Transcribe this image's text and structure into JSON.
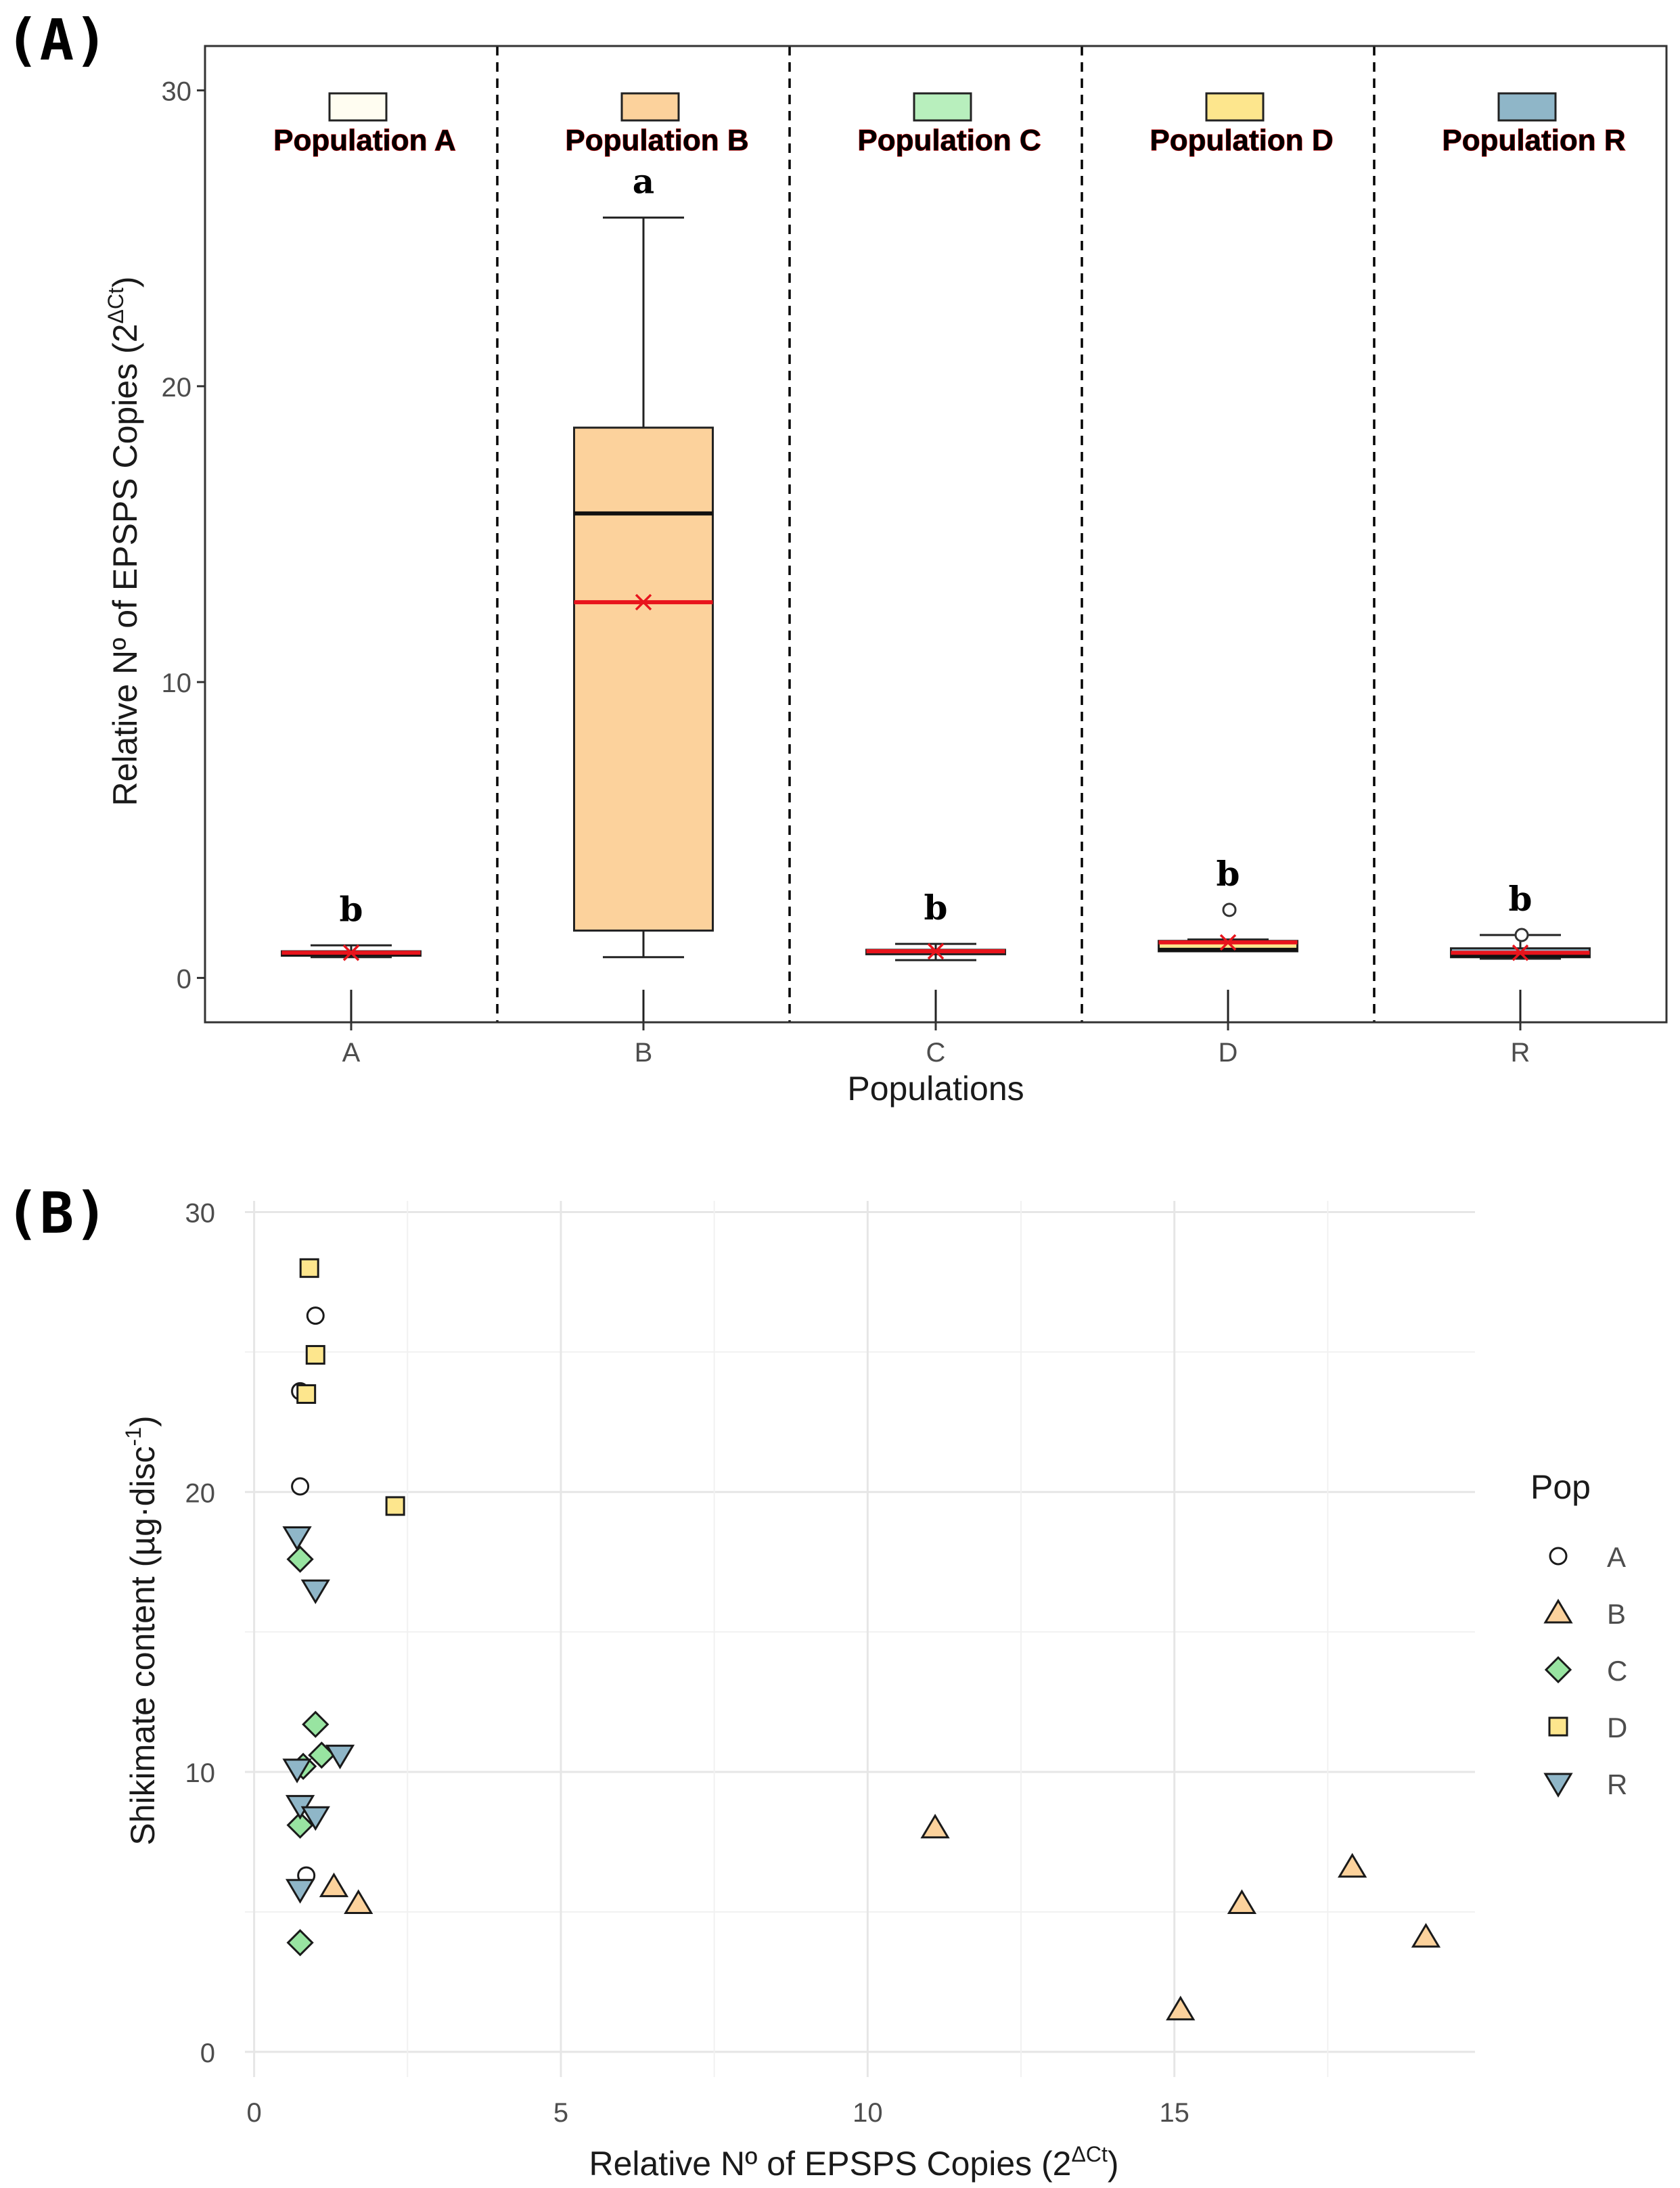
{
  "chart_data": [
    {
      "panel_label": "(A)",
      "type": "box",
      "xlabel": "Populations",
      "ylabel_main": "Relative Nº of EPSPS Copies (2",
      "ylabel_sup": "ΔCt",
      "ylabel_end": ")",
      "ylim": [
        -1.5,
        31.5
      ],
      "yticks": [
        "0",
        "10",
        "20",
        "30"
      ],
      "categories": [
        "A",
        "B",
        "C",
        "D",
        "R"
      ],
      "colors": {
        "A": "#fffdf1",
        "B": "#fcd29c",
        "C": "#b8efbd",
        "D": "#fde68d",
        "R": "#8fb6c8",
        "mean": "#e8141c"
      },
      "groups": [
        {
          "key": "A",
          "label": "Population A",
          "letter": "b",
          "whisker_low": 0.7,
          "q1": 0.75,
          "median": 0.8,
          "q3": 0.9,
          "whisker_high": 1.1,
          "mean": 0.85,
          "outliers": []
        },
        {
          "key": "B",
          "label": "Population B",
          "letter": "a",
          "whisker_low": 0.7,
          "q1": 1.6,
          "median": 15.7,
          "q3": 18.6,
          "whisker_high": 25.7,
          "mean": 12.7,
          "outliers": []
        },
        {
          "key": "C",
          "label": "Population C",
          "letter": "b",
          "whisker_low": 0.6,
          "q1": 0.8,
          "median": 0.9,
          "q3": 0.95,
          "whisker_high": 1.15,
          "mean": 0.9,
          "outliers": []
        },
        {
          "key": "D",
          "label": "Population D",
          "letter": "b",
          "whisker_low": 0.9,
          "q1": 0.9,
          "median": 0.95,
          "q3": 1.25,
          "whisker_high": 1.3,
          "mean": 1.2,
          "outliers": [
            2.3
          ]
        },
        {
          "key": "R",
          "label": "Population R",
          "letter": "b",
          "whisker_low": 0.65,
          "q1": 0.7,
          "median": 0.75,
          "q3": 1.0,
          "whisker_high": 1.45,
          "mean": 0.85,
          "outliers": [
            1.45
          ]
        }
      ]
    },
    {
      "panel_label": "(B)",
      "type": "scatter",
      "xlabel_main": "Relative Nº of EPSPS Copies (2",
      "xlabel_sup": "ΔCt",
      "xlabel_end": ")",
      "ylabel_main": "Shikimate content (µg·disc",
      "ylabel_sup": "-1",
      "ylabel_end": ")",
      "xlim": [
        -0.15,
        19.9
      ],
      "ylim": [
        -0.9,
        30.4
      ],
      "xticks": [
        "0",
        "5",
        "10",
        "15"
      ],
      "yticks": [
        "0",
        "10",
        "20",
        "30"
      ],
      "legend_title": "Pop",
      "legend_position": "right",
      "series": [
        {
          "name": "A",
          "shape": "circle",
          "color": "#ffffff",
          "points": [
            [
              1.0,
              26.3
            ],
            [
              0.75,
              23.6
            ],
            [
              0.75,
              20.2
            ],
            [
              0.85,
              6.3
            ]
          ]
        },
        {
          "name": "B",
          "shape": "triangle-up",
          "color": "#fcd29c",
          "points": [
            [
              11.1,
              8.0
            ],
            [
              15.1,
              1.5
            ],
            [
              16.1,
              5.3
            ],
            [
              17.9,
              6.6
            ],
            [
              19.1,
              4.1
            ],
            [
              1.3,
              5.9
            ],
            [
              1.7,
              5.3
            ]
          ]
        },
        {
          "name": "C",
          "shape": "diamond",
          "color": "#98e4a1",
          "points": [
            [
              0.75,
              17.6
            ],
            [
              1.0,
              11.7
            ],
            [
              0.8,
              10.2
            ],
            [
              1.1,
              10.6
            ],
            [
              0.75,
              8.1
            ],
            [
              0.75,
              3.9
            ]
          ]
        },
        {
          "name": "D",
          "shape": "square",
          "color": "#fde68d",
          "points": [
            [
              0.9,
              28.0
            ],
            [
              1.0,
              24.9
            ],
            [
              0.85,
              23.5
            ],
            [
              2.3,
              19.5
            ]
          ]
        },
        {
          "name": "R",
          "shape": "triangle-down",
          "color": "#8fb6c8",
          "points": [
            [
              0.7,
              18.4
            ],
            [
              1.0,
              16.5
            ],
            [
              0.7,
              10.1
            ],
            [
              1.4,
              10.6
            ],
            [
              0.75,
              8.8
            ],
            [
              1.0,
              8.4
            ],
            [
              0.75,
              5.8
            ]
          ]
        }
      ]
    }
  ]
}
